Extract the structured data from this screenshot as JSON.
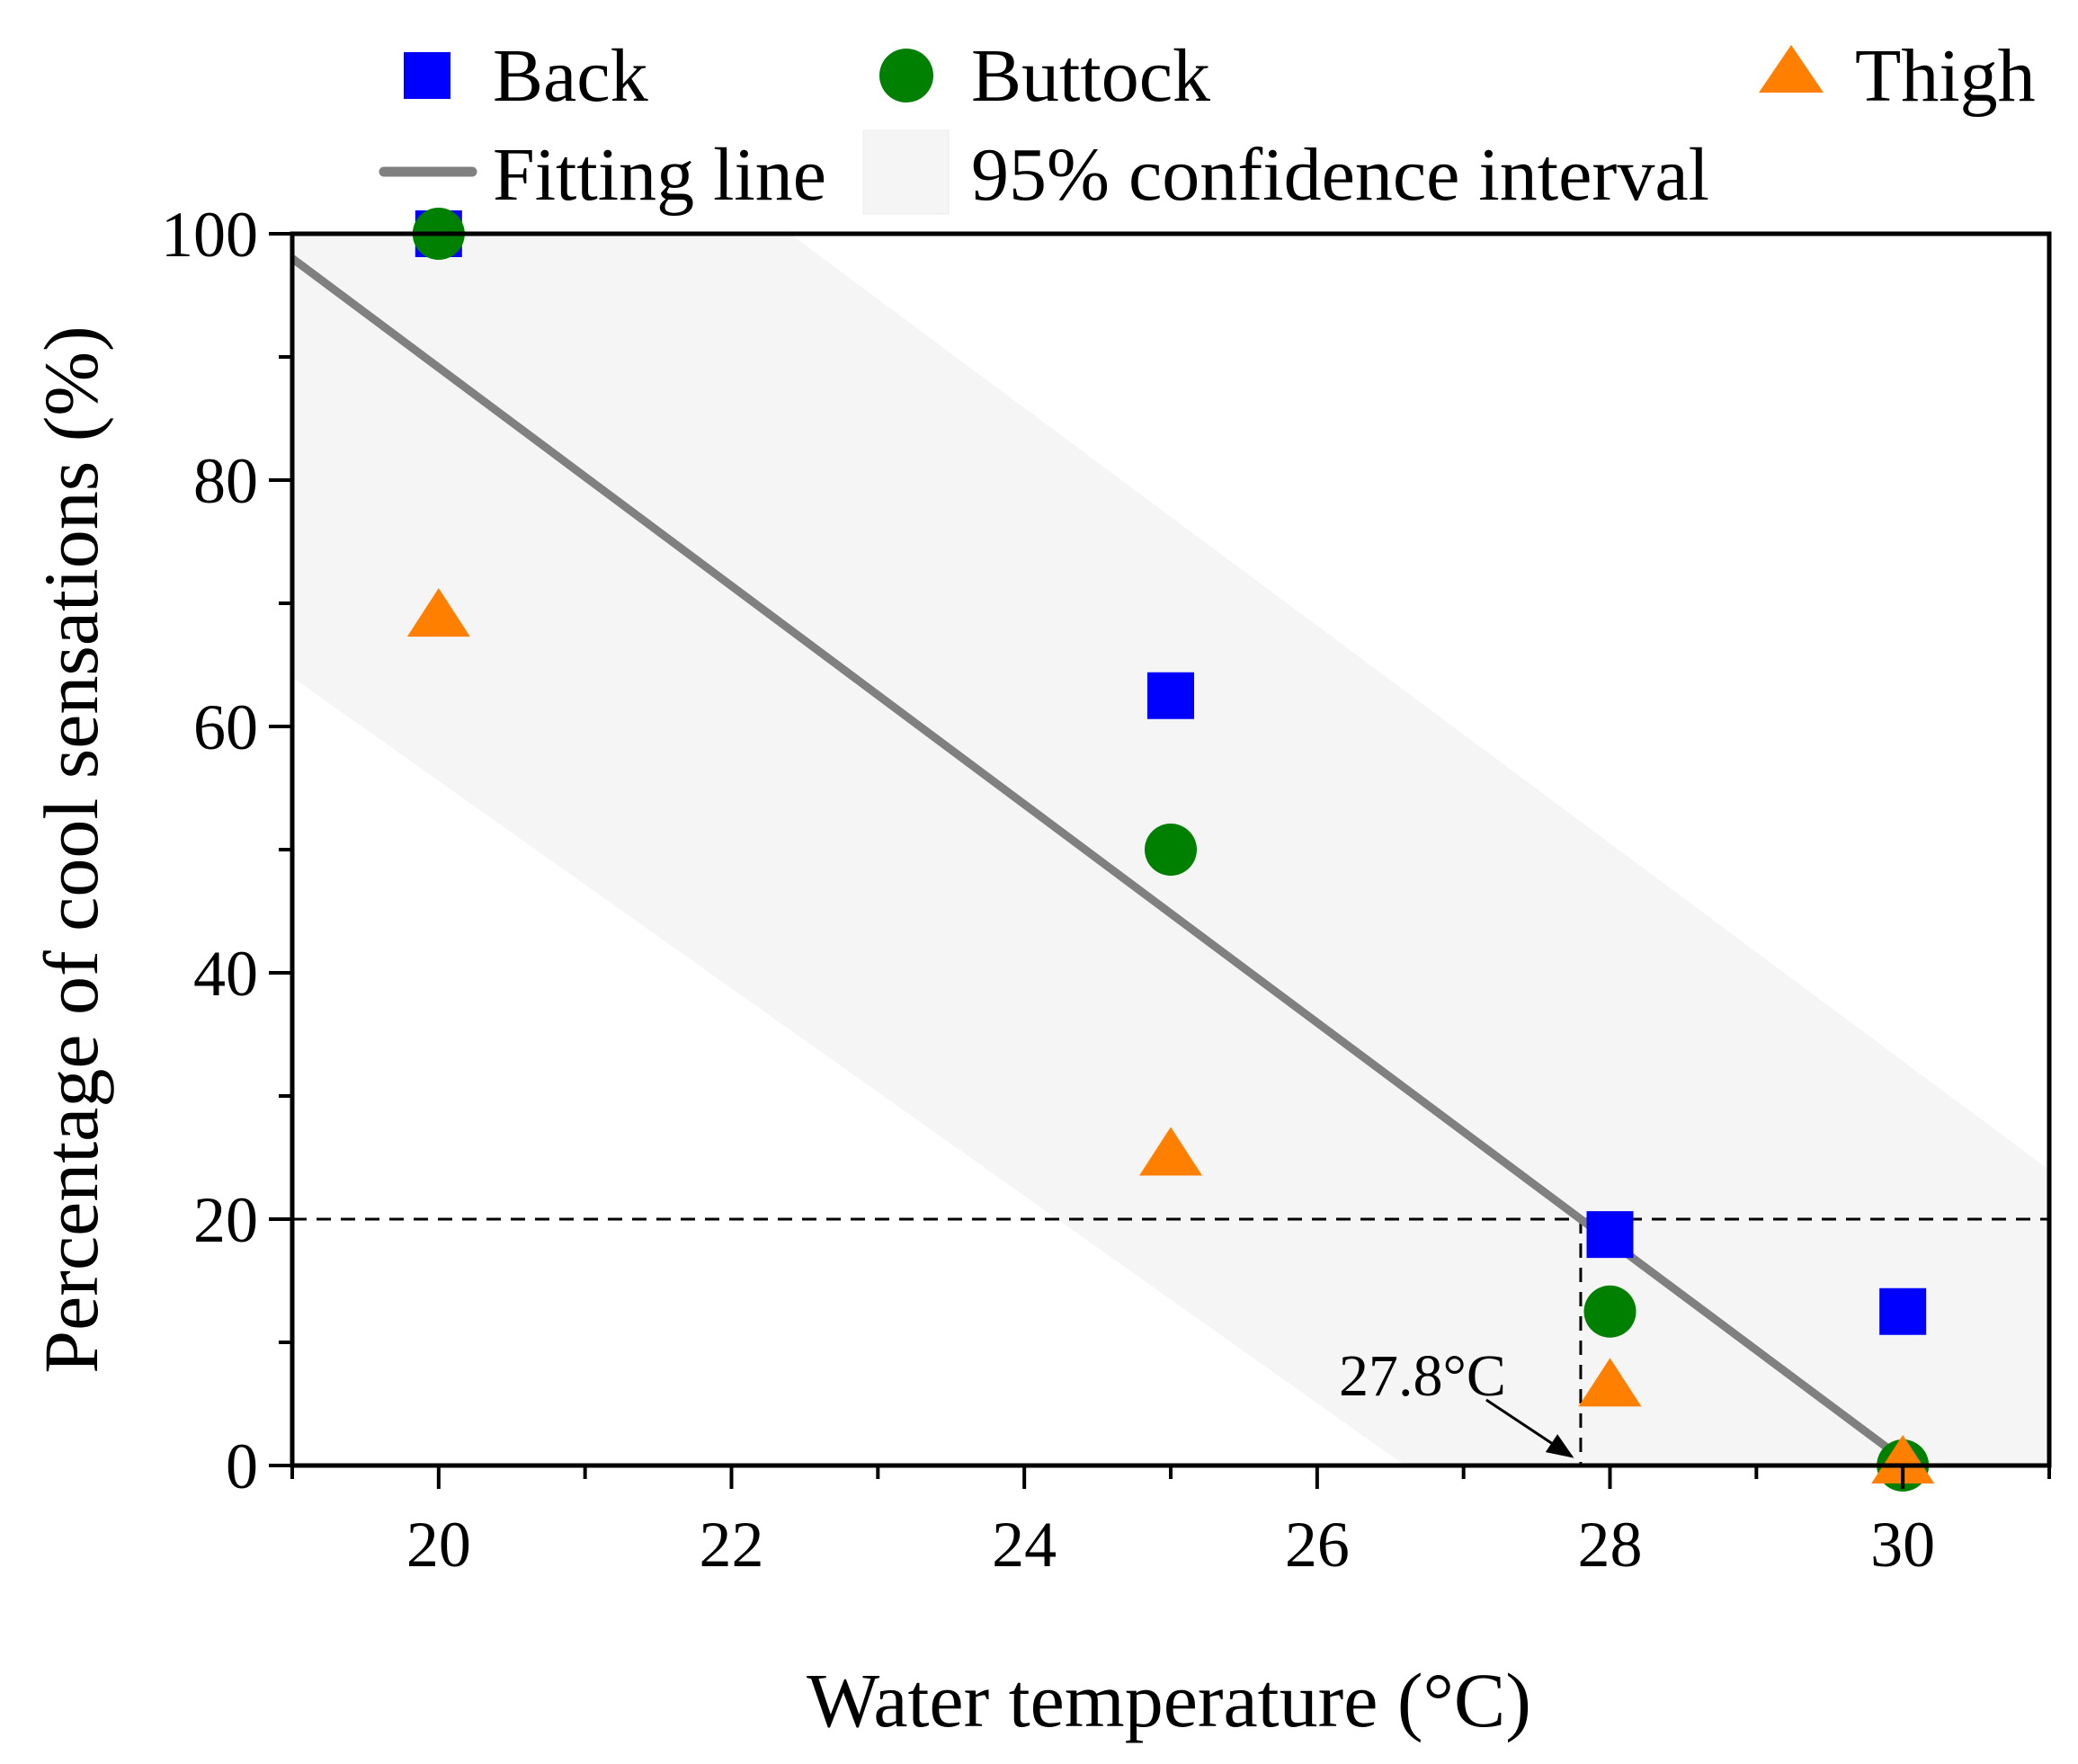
{
  "colors": {
    "back": "#0000ff",
    "buttock": "#008000",
    "thigh": "#ff8000",
    "fit_line": "#808080",
    "ci_band": "#f5f5f5",
    "axis": "#000000"
  },
  "chart_data": {
    "type": "scatter",
    "xlabel": "Water temperature (°C)",
    "ylabel": "Percentage of cool sensations (%)",
    "xlim": [
      19,
      31
    ],
    "ylim": [
      0,
      100
    ],
    "x_ticks": [
      20,
      22,
      24,
      26,
      28,
      30
    ],
    "y_ticks": [
      0,
      20,
      40,
      60,
      80,
      100
    ],
    "x_minor_step": 1,
    "y_minor_step": 10,
    "series": [
      {
        "name": "Back",
        "marker": "square",
        "color_key": "back",
        "points": [
          {
            "x": 20,
            "y": 100
          },
          {
            "x": 25,
            "y": 62.5
          },
          {
            "x": 28,
            "y": 18.75
          },
          {
            "x": 30,
            "y": 12.5
          }
        ]
      },
      {
        "name": "Buttock",
        "marker": "circle",
        "color_key": "buttock",
        "points": [
          {
            "x": 20,
            "y": 100
          },
          {
            "x": 25,
            "y": 50
          },
          {
            "x": 28,
            "y": 12.5
          },
          {
            "x": 30,
            "y": 0
          }
        ]
      },
      {
        "name": "Thigh",
        "marker": "triangle",
        "color_key": "thigh",
        "points": [
          {
            "x": 20,
            "y": 68.75
          },
          {
            "x": 25,
            "y": 25
          },
          {
            "x": 28,
            "y": 6.25
          },
          {
            "x": 30,
            "y": 0
          }
        ]
      }
    ],
    "fit_line": {
      "name": "Fitting line",
      "points": [
        {
          "x": 19.0,
          "y": 98.0
        },
        {
          "x": 30.0,
          "y": 0.5
        }
      ]
    },
    "confidence_band": {
      "name": "95% confidence interval",
      "upper": [
        {
          "x": 19.0,
          "y": 100
        },
        {
          "x": 22.4,
          "y": 100
        },
        {
          "x": 31.0,
          "y": 24
        }
      ],
      "lower": [
        {
          "x": 19.0,
          "y": 64
        },
        {
          "x": 26.6,
          "y": 0
        },
        {
          "x": 31.0,
          "y": 0
        }
      ]
    },
    "threshold": {
      "y": 20,
      "x": 27.8
    },
    "annotation": {
      "text": "27.8°C",
      "x": 27.8,
      "y": 0
    },
    "legend": {
      "placement": "top",
      "rows": [
        [
          "Back",
          "Buttock",
          "Thigh"
        ],
        [
          "Fitting line",
          "95% confidence interval"
        ]
      ]
    }
  }
}
